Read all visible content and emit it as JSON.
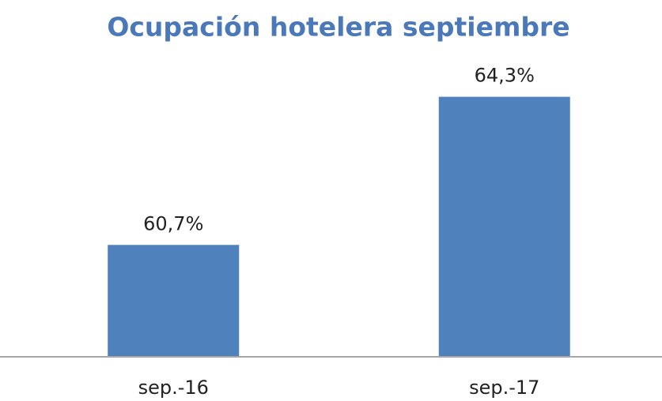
{
  "chart_data": {
    "type": "bar",
    "title": "Ocupación hotelera septiembre",
    "categories": [
      "sep.-16",
      "sep.-17"
    ],
    "values": [
      60.7,
      64.3
    ],
    "value_labels": [
      "60,7%",
      "64,3%"
    ],
    "color": "#4f81bd",
    "ylim": [
      58,
      66
    ]
  }
}
